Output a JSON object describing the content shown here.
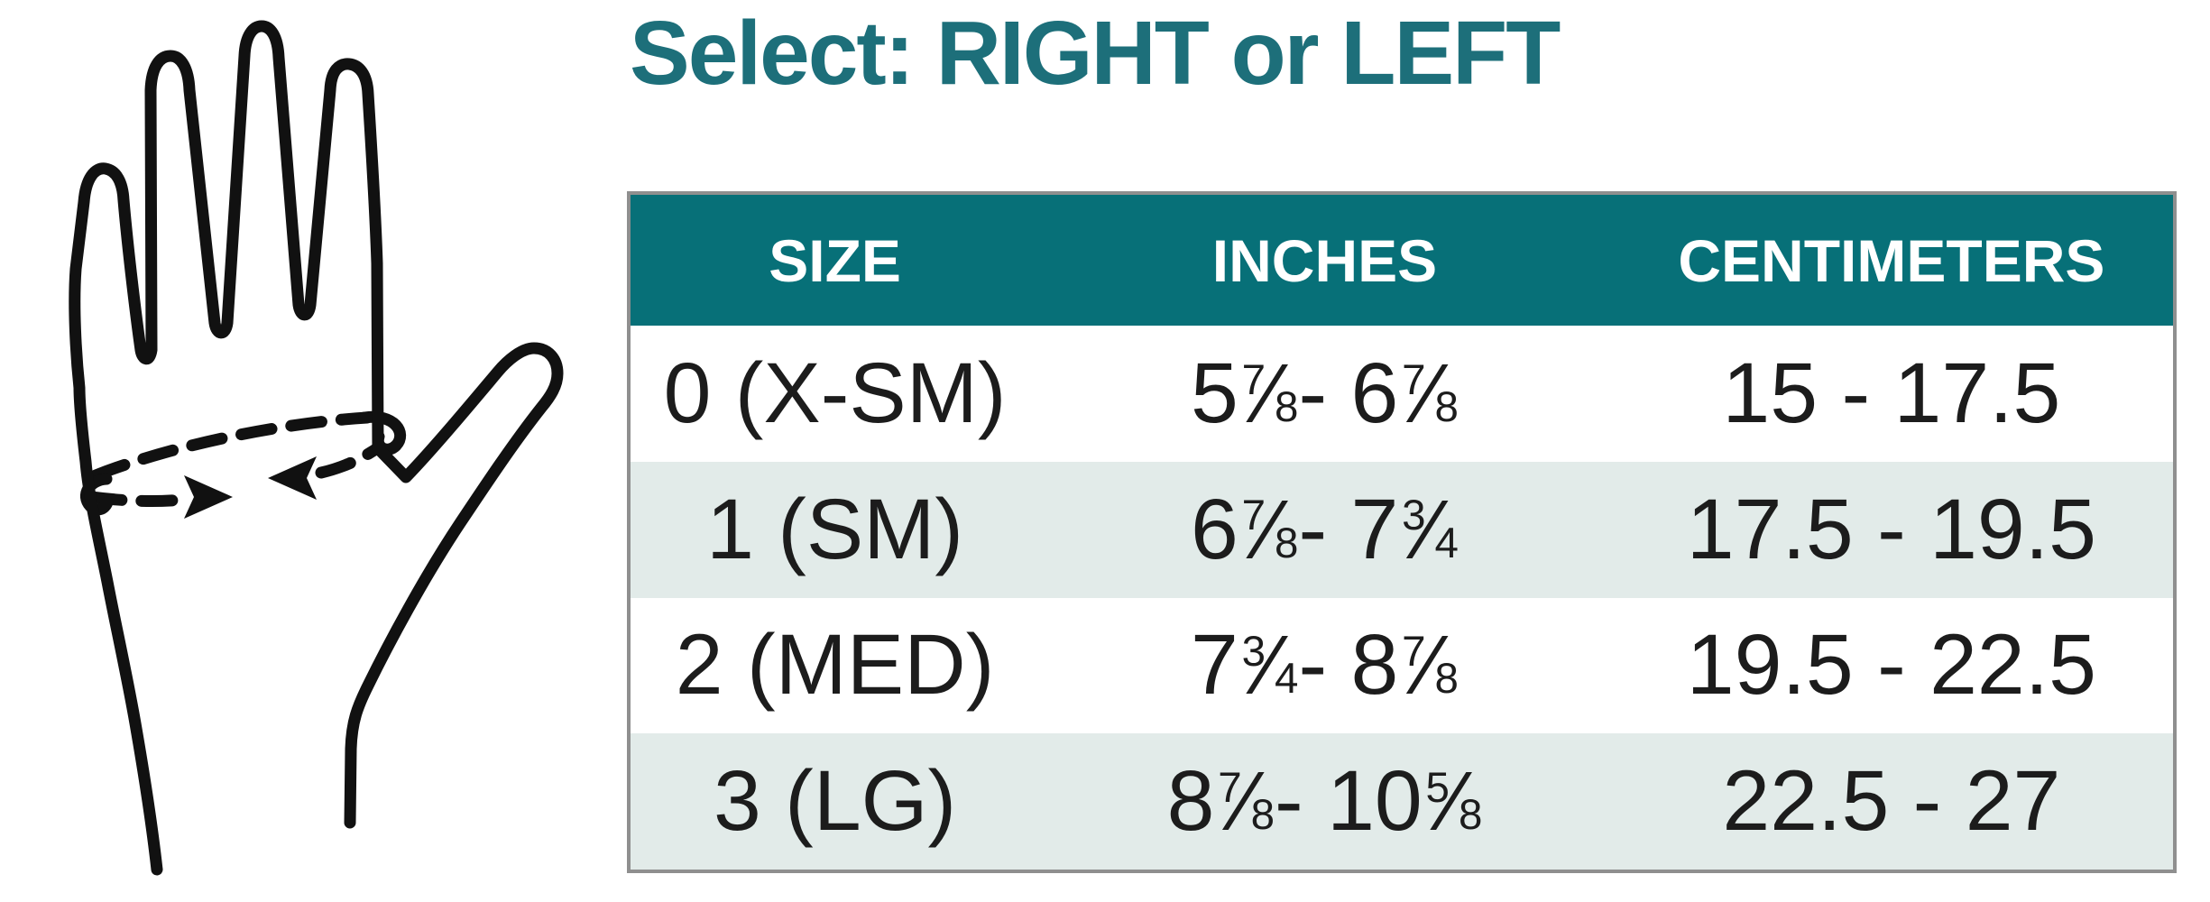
{
  "title": {
    "text": "Select: RIGHT or LEFT"
  },
  "colors": {
    "title_teal": "#1d6f7a",
    "header_teal": "#077078",
    "row_alt": "#e2ebe9",
    "row_white": "#ffffff",
    "table_border_gray": "#8f8f8f",
    "ink": "#111111"
  },
  "illustration": {
    "name": "hand with dashed measurement line around palm circumference",
    "elements": [
      "hand-outline",
      "dashed-measure-ellipse",
      "right-arrow",
      "left-arrow"
    ]
  },
  "size_table": {
    "header": {
      "columns": [
        "SIZE",
        "INCHES",
        "CENTIMETERS"
      ]
    },
    "rows": [
      {
        "size": "0 (X-SM)",
        "inches": "5 7/8 - 6 7/8",
        "centimeters": "15 - 17.5"
      },
      {
        "size": "1 (SM)",
        "inches": "6 7/8 - 7 3/4",
        "centimeters": "17.5 - 19.5"
      },
      {
        "size": "2 (MED)",
        "inches": "7 3/4 - 8 7/8",
        "centimeters": "19.5 - 22.5"
      },
      {
        "size": "3 (LG)",
        "inches": "8 7/8 - 10 5/8",
        "centimeters": "22.5 - 27"
      }
    ]
  },
  "chart_data": {
    "type": "table",
    "title": "Select: RIGHT or LEFT",
    "columns": [
      "SIZE",
      "INCHES",
      "CENTIMETERS"
    ],
    "rows": [
      [
        "0 (X-SM)",
        "5 7/8 - 6 7/8",
        "15 - 17.5"
      ],
      [
        "1 (SM)",
        "6 7/8 - 7 3/4",
        "17.5 - 19.5"
      ],
      [
        "2 (MED)",
        "7 3/4 - 8 7/8",
        "19.5 - 22.5"
      ],
      [
        "3 (LG)",
        "8 7/8 - 10 5/8",
        "22.5 - 27"
      ]
    ],
    "legend_position": "none",
    "grid": false
  }
}
